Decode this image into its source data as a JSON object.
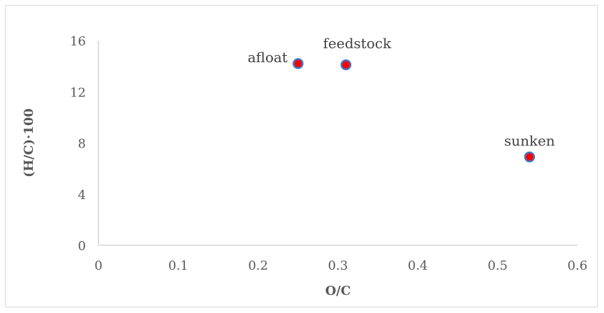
{
  "chart_data": {
    "type": "scatter",
    "xlabel": "O/C",
    "ylabel": "(H/C)·100",
    "xlim": [
      0,
      0.6
    ],
    "ylim": [
      0,
      16
    ],
    "xticks": [
      "0",
      "0.1",
      "0.2",
      "0.3",
      "0.4",
      "0.5",
      "0.6"
    ],
    "yticks": [
      "0",
      "4",
      "8",
      "12",
      "16"
    ],
    "grid": false,
    "legend": "none",
    "marker_fill": "#ff0000",
    "marker_edge": "#4472c4",
    "points": [
      {
        "label": "afloat",
        "x": 0.25,
        "y": 14.2
      },
      {
        "label": "feedstock",
        "x": 0.31,
        "y": 14.1
      },
      {
        "label": "sunken",
        "x": 0.54,
        "y": 6.9
      }
    ]
  }
}
